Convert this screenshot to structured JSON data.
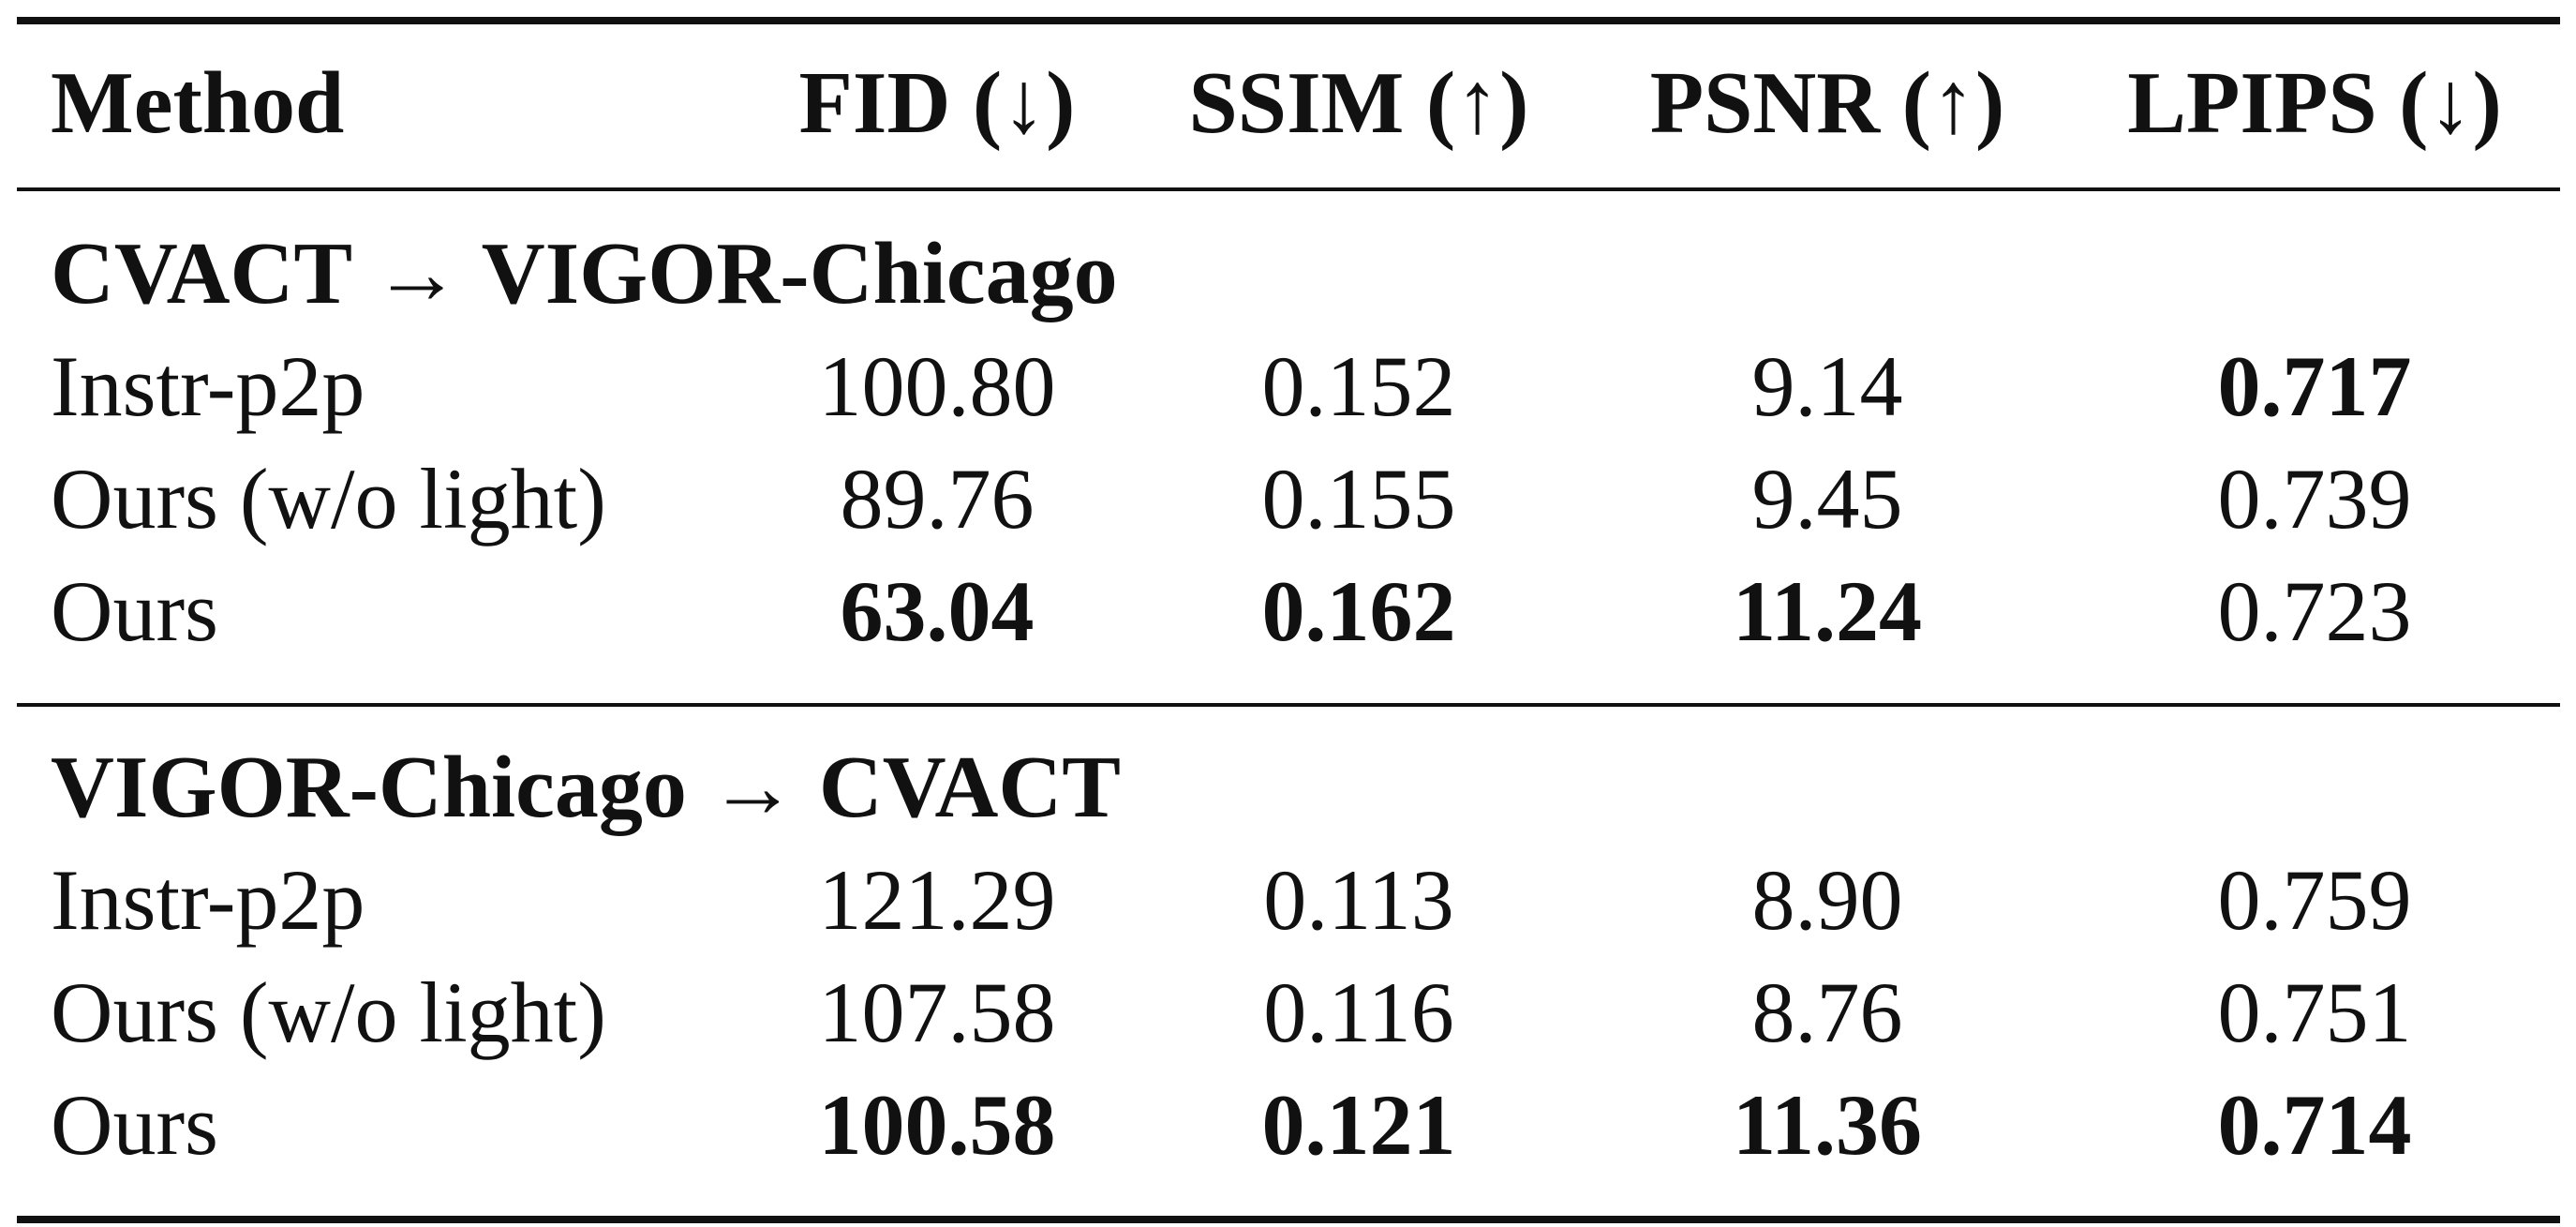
{
  "table": {
    "headers": {
      "method": "Method",
      "fid": "FID (↓)",
      "ssim": "SSIM (↑)",
      "psnr": "PSNR (↑)",
      "lpips": "LPIPS (↓)"
    },
    "sections": [
      {
        "title": "CVACT → VIGOR-Chicago",
        "rows": [
          {
            "method": "Instr-p2p",
            "fid": "100.80",
            "ssim": "0.152",
            "psnr": "9.14",
            "lpips": "0.717",
            "bold": [
              "lpips"
            ]
          },
          {
            "method": "Ours (w/o light)",
            "fid": "89.76",
            "ssim": "0.155",
            "psnr": "9.45",
            "lpips": "0.739",
            "bold": []
          },
          {
            "method": "Ours",
            "fid": "63.04",
            "ssim": "0.162",
            "psnr": "11.24",
            "lpips": "0.723",
            "bold": [
              "fid",
              "ssim",
              "psnr"
            ]
          }
        ]
      },
      {
        "title": "VIGOR-Chicago → CVACT",
        "rows": [
          {
            "method": "Instr-p2p",
            "fid": "121.29",
            "ssim": "0.113",
            "psnr": "8.90",
            "lpips": "0.759",
            "bold": []
          },
          {
            "method": "Ours (w/o light)",
            "fid": "107.58",
            "ssim": "0.116",
            "psnr": "8.76",
            "lpips": "0.751",
            "bold": []
          },
          {
            "method": "Ours",
            "fid": "100.58",
            "ssim": "0.121",
            "psnr": "11.36",
            "lpips": "0.714",
            "bold": [
              "fid",
              "ssim",
              "psnr",
              "lpips"
            ]
          }
        ]
      }
    ]
  }
}
